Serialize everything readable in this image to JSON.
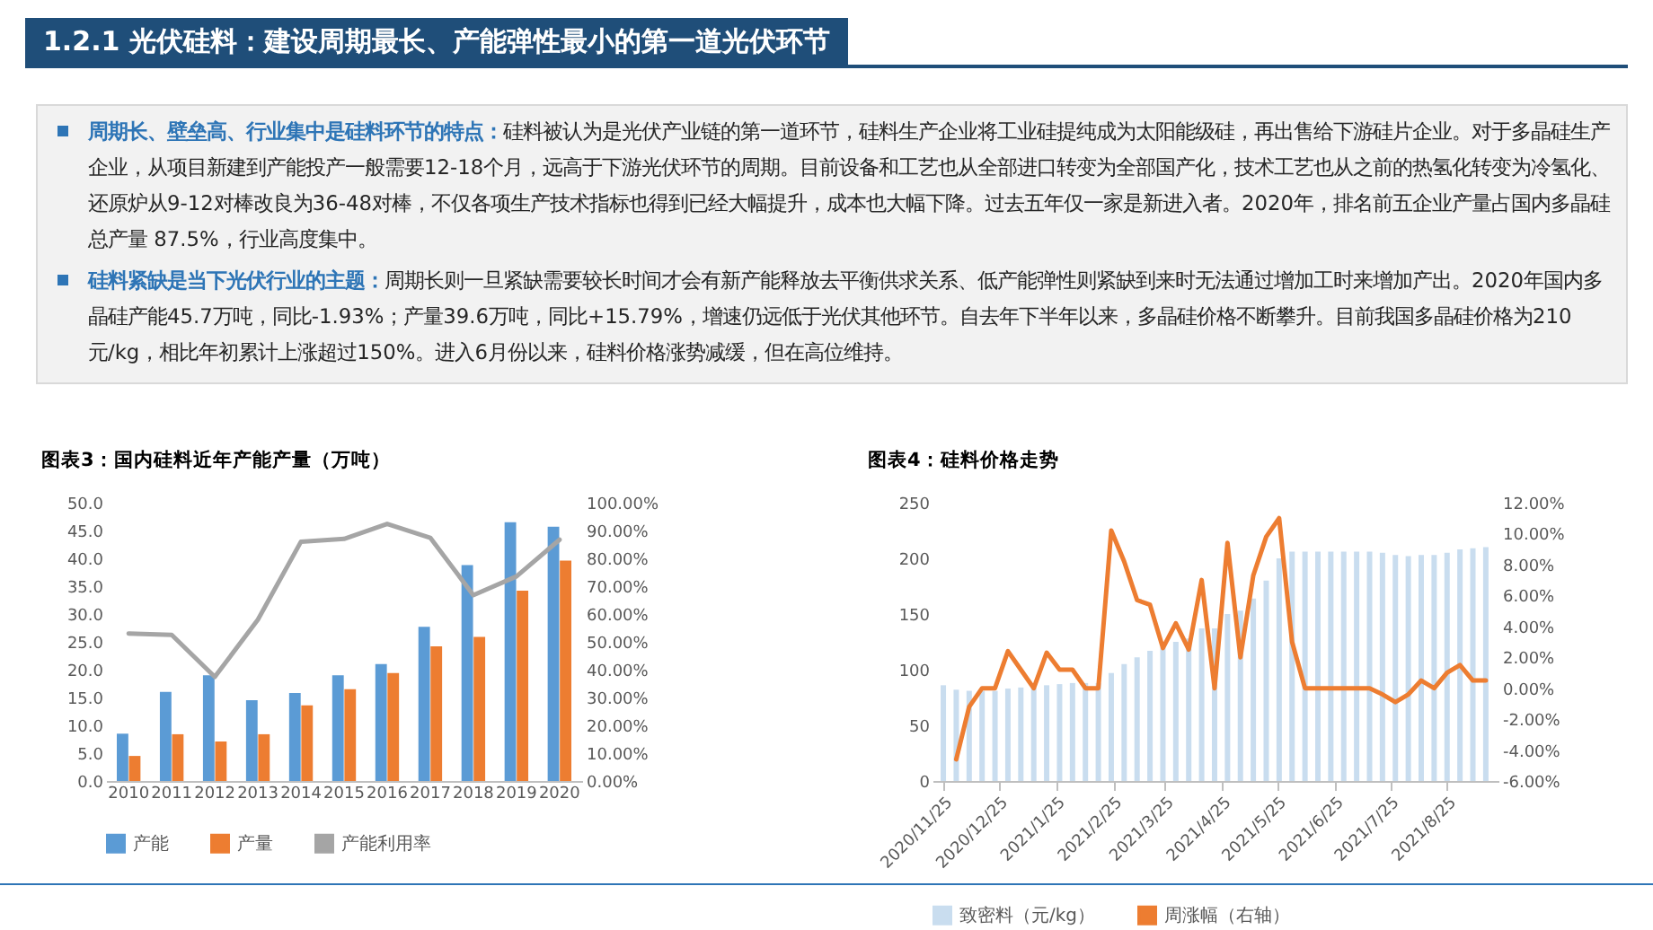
{
  "chart_data": [
    {
      "type": "other",
      "title": "1.2.1 光伏硅料：建设周期最长、产能弹性最小的第一道光伏环节",
      "annotations": [
        "周期长、壁垒高、行业集中是硅料环节的特点：",
        "硅料被认为是光伏产业链的第一道环节，硅料生产企业将工业硅提纯成为太阳能级硅，再出售给下游硅片企业。对于多晶硅生产企业，从项目新建到产能投产一般需要12-18个月，远高于下游光伏环节的周期。目前设备和工艺也从全部进口转变为全部国产化，技术工艺也从之前的热氢化转变为冷氢化、还原炉从9-12对棒改良为36-48对棒，不仅各项生产技术指标也得到已经大幅提升，成本也大幅下降。过去五年仅一家是新进入者。2020年，排名前五企业产量占国内多晶硅总产量 87.5%，行业高度集中。",
        "硅料紧缺是当下光伏行业的主题：",
        "周期长则一旦紧缺需要较长时间才会有新产能释放去平衡供求关系、低产能弹性则紧缺到来时无法通过增加工时来增加产出。2020年国内多晶硅产能45.7万吨，同比-1.93%；产量39.6万吨，同比+15.79%，增速仍远低于光伏其他环节。自去年下半年以来，多晶硅价格不断攀升。目前我国多晶硅价格为210元/kg，相比年初累计上涨超过150%。进入6月份以来，硅料价格涨势减缓，但在高位维持。"
      ]
    },
    {
      "type": "bar",
      "title": "图表3：国内硅料近年产能产量（万吨）",
      "categories": [
        "2010",
        "2011",
        "2012",
        "2013",
        "2014",
        "2015",
        "2016",
        "2017",
        "2018",
        "2019",
        "2020"
      ],
      "series": [
        {
          "name": "产能",
          "color": "#5b9bd5",
          "values": [
            8.5,
            16.0,
            19.0,
            14.5,
            15.8,
            19.0,
            21.0,
            27.7,
            38.8,
            46.5,
            45.7
          ]
        },
        {
          "name": "产量",
          "color": "#ed7d31",
          "values": [
            4.5,
            8.4,
            7.1,
            8.4,
            13.6,
            16.5,
            19.4,
            24.2,
            25.9,
            34.2,
            39.6
          ]
        },
        {
          "name": "产能利用率",
          "type": "line",
          "axis": "y2",
          "color": "#a5a5a5",
          "values": [
            53,
            52.5,
            37.4,
            58,
            86,
            87,
            92.4,
            87.4,
            66.8,
            73.5,
            86.7
          ]
        }
      ],
      "ylim": [
        0,
        50
      ],
      "yticks": [
        {
          "value": 0,
          "label": "0.0"
        },
        {
          "value": 5,
          "label": "5.0"
        },
        {
          "value": 10,
          "label": "10.0"
        },
        {
          "value": 15,
          "label": "15.0"
        },
        {
          "value": 20,
          "label": "20.0"
        },
        {
          "value": 25,
          "label": "25.0"
        },
        {
          "value": 30,
          "label": "30.0"
        },
        {
          "value": 35,
          "label": "35.0"
        },
        {
          "value": 40,
          "label": "40.0"
        },
        {
          "value": 45,
          "label": "45.0"
        },
        {
          "value": 50,
          "label": "50.0"
        }
      ],
      "y2lim": [
        0,
        100
      ],
      "y2ticks": [
        {
          "value": 0,
          "label": "0.00%"
        },
        {
          "value": 10,
          "label": "10.00%"
        },
        {
          "value": 20,
          "label": "20.00%"
        },
        {
          "value": 30,
          "label": "30.00%"
        },
        {
          "value": 40,
          "label": "40.00%"
        },
        {
          "value": 50,
          "label": "50.00%"
        },
        {
          "value": 60,
          "label": "60.00%"
        },
        {
          "value": 70,
          "label": "70.00%"
        },
        {
          "value": 80,
          "label": "80.00%"
        },
        {
          "value": 90,
          "label": "90.00%"
        },
        {
          "value": 100,
          "label": "100.00%"
        }
      ],
      "legend": "bottom"
    },
    {
      "type": "bar",
      "title": "图表4：硅料价格走势",
      "x": [
        "2020-11-25",
        "2020-12-02",
        "2020-12-09",
        "2020-12-16",
        "2020-12-23",
        "2020-12-30",
        "2021-01-06",
        "2021-01-13",
        "2021-01-20",
        "2021-01-27",
        "2021-02-03",
        "2021-02-10",
        "2021-02-17",
        "2021-02-24",
        "2021-03-03",
        "2021-03-10",
        "2021-03-17",
        "2021-03-24",
        "2021-03-31",
        "2021-04-07",
        "2021-04-14",
        "2021-04-21",
        "2021-04-28",
        "2021-05-05",
        "2021-05-12",
        "2021-05-19",
        "2021-05-26",
        "2021-06-02",
        "2021-06-09",
        "2021-06-16",
        "2021-06-23",
        "2021-06-30",
        "2021-07-07",
        "2021-07-14",
        "2021-07-21",
        "2021-07-28",
        "2021-08-04",
        "2021-08-11",
        "2021-08-18",
        "2021-08-25",
        "2021-09-01",
        "2021-09-08",
        "2021-09-15"
      ],
      "series": [
        {
          "name": "致密料（元/kg）",
          "color": "#c9ddef",
          "values": [
            86,
            82,
            81,
            81,
            81,
            83,
            84,
            84,
            86,
            87,
            88,
            88,
            88,
            97,
            105,
            111,
            117,
            120,
            125,
            128,
            137,
            137,
            150,
            153,
            164,
            180,
            200,
            206,
            206,
            206,
            206,
            206,
            206,
            206,
            205,
            203,
            202,
            203,
            203,
            205,
            208,
            209,
            210
          ]
        },
        {
          "name": "周涨幅（右轴）",
          "type": "line",
          "axis": "y2",
          "color": "#ed7d31",
          "values": [
            null,
            -4.6,
            -1.2,
            0,
            0,
            2.4,
            1.2,
            0,
            2.3,
            1.2,
            1.2,
            0,
            0,
            10.2,
            8.2,
            5.7,
            5.4,
            2.6,
            4.2,
            2.5,
            7.0,
            0,
            9.4,
            2.0,
            7.3,
            9.8,
            11.0,
            3.0,
            0,
            0,
            0,
            0,
            0,
            0,
            -0.4,
            -0.9,
            -0.4,
            0.5,
            0,
            1.0,
            1.5,
            0.5,
            0.5
          ]
        }
      ],
      "xlim": [
        "2020-11-24",
        "2021-09-17"
      ],
      "xticks": [
        {
          "value": "2020-11-25",
          "label": "2020/11/25"
        },
        {
          "value": "2020-12-25",
          "label": "2020/12/25"
        },
        {
          "value": "2021-01-25",
          "label": "2021/1/25"
        },
        {
          "value": "2021-02-25",
          "label": "2021/2/25"
        },
        {
          "value": "2021-03-25",
          "label": "2021/3/25"
        },
        {
          "value": "2021-04-25",
          "label": "2021/4/25"
        },
        {
          "value": "2021-05-25",
          "label": "2021/5/25"
        },
        {
          "value": "2021-06-25",
          "label": "2021/6/25"
        },
        {
          "value": "2021-07-25",
          "label": "2021/7/25"
        },
        {
          "value": "2021-08-25",
          "label": "2021/8/25"
        }
      ],
      "ylim": [
        0,
        250
      ],
      "yticks": [
        0,
        50,
        100,
        150,
        200,
        250
      ],
      "y2lim": [
        -6,
        12
      ],
      "y2ticks": [
        {
          "value": -6,
          "label": "-6.00%"
        },
        {
          "value": -4,
          "label": "-4.00%"
        },
        {
          "value": -2,
          "label": "-2.00%"
        },
        {
          "value": 0,
          "label": "0.00%"
        },
        {
          "value": 2,
          "label": "2.00%"
        },
        {
          "value": 4,
          "label": "4.00%"
        },
        {
          "value": 6,
          "label": "6.00%"
        },
        {
          "value": 8,
          "label": "8.00%"
        },
        {
          "value": 10,
          "label": "10.00%"
        },
        {
          "value": 12,
          "label": "12.00%"
        }
      ],
      "legend": "bottom"
    }
  ]
}
